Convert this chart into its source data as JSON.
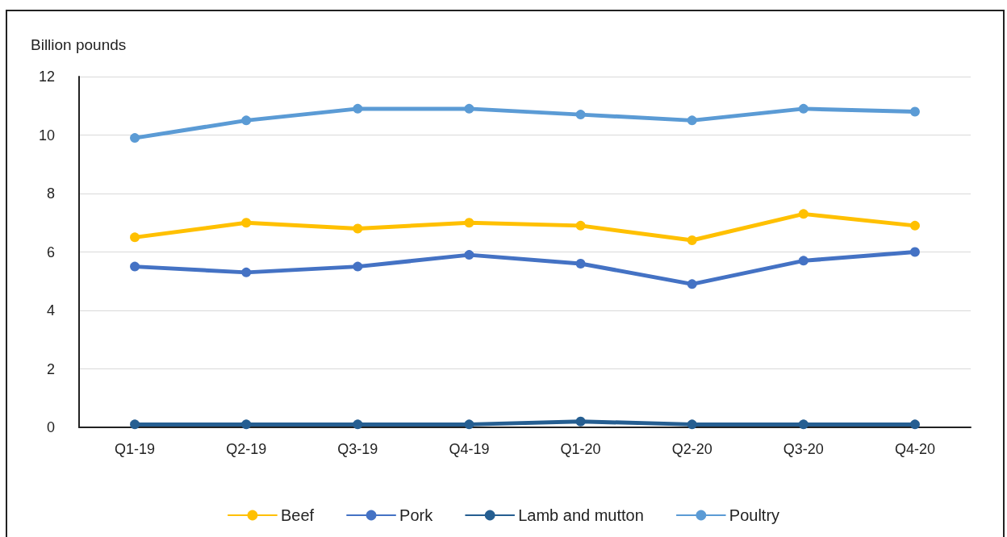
{
  "chart_data": {
    "type": "line",
    "ylabel": "Billion pounds",
    "categories": [
      "Q1-19",
      "Q2-19",
      "Q3-19",
      "Q4-19",
      "Q1-20",
      "Q2-20",
      "Q3-20",
      "Q4-20"
    ],
    "series": [
      {
        "name": "Beef",
        "color": "#ffc000",
        "values": [
          6.5,
          7.0,
          6.8,
          7.0,
          6.9,
          6.4,
          7.3,
          6.9
        ]
      },
      {
        "name": "Pork",
        "color": "#4472c4",
        "values": [
          5.5,
          5.3,
          5.5,
          5.9,
          5.6,
          4.9,
          5.7,
          6.0
        ]
      },
      {
        "name": "Lamb and mutton",
        "color": "#255e91",
        "values": [
          0.1,
          0.1,
          0.1,
          0.1,
          0.2,
          0.1,
          0.1,
          0.1
        ]
      },
      {
        "name": "Poultry",
        "color": "#5b9bd5",
        "values": [
          9.9,
          10.5,
          10.9,
          10.9,
          10.7,
          10.5,
          10.9,
          10.8
        ]
      }
    ],
    "ylim": [
      0,
      12
    ],
    "yticks": [
      0,
      2,
      4,
      6,
      8,
      10,
      12
    ],
    "grid": "y",
    "legend": "bottom",
    "marker": "circle",
    "line_style": "solid"
  }
}
